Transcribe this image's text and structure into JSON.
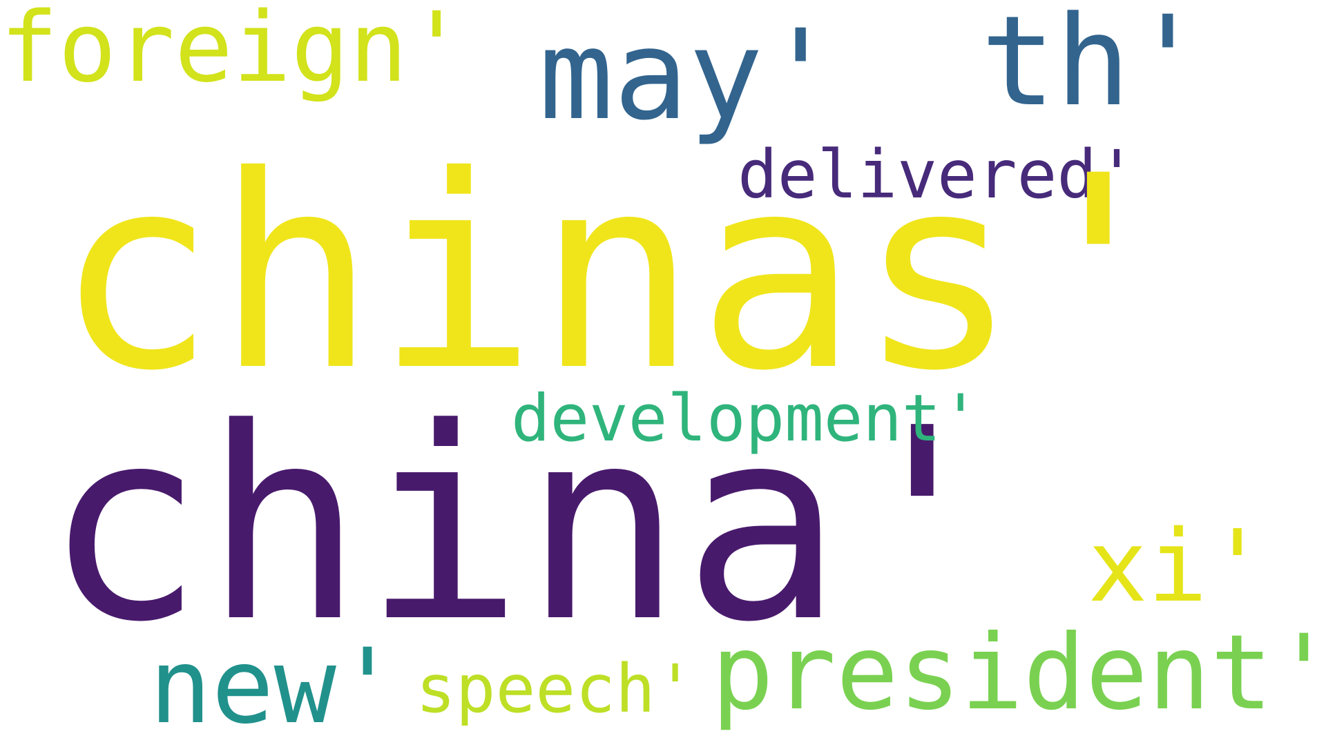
{
  "words": [
    {
      "id": "chinas",
      "text": "chinas'",
      "color": "#f0e51b"
    },
    {
      "id": "china",
      "text": "china'",
      "color": "#481a6c"
    },
    {
      "id": "may",
      "text": "may'",
      "color": "#32648e"
    },
    {
      "id": "th",
      "text": "th'",
      "color": "#32648e"
    },
    {
      "id": "foreign",
      "text": "foreign'",
      "color": "#d2e21b"
    },
    {
      "id": "delivered",
      "text": "delivered'",
      "color": "#472a7a"
    },
    {
      "id": "development",
      "text": "development'",
      "color": "#2fb47c"
    },
    {
      "id": "xi",
      "text": "xi'",
      "color": "#e5e419"
    },
    {
      "id": "new",
      "text": "new'",
      "color": "#21918c"
    },
    {
      "id": "speech",
      "text": "speech'",
      "color": "#bddf26"
    },
    {
      "id": "president",
      "text": "president'",
      "color": "#7ad151"
    }
  ]
}
